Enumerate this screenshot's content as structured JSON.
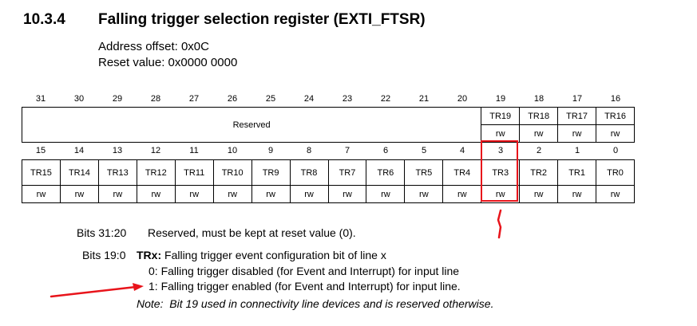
{
  "section": {
    "number": "10.3.4",
    "title": "Falling trigger selection register (EXTI_FTSR)",
    "address_offset": "Address offset: 0x0C",
    "reset_value": "Reset value: 0x0000 0000"
  },
  "register": {
    "upper_bit_numbers": [
      "31",
      "30",
      "29",
      "28",
      "27",
      "26",
      "25",
      "24",
      "23",
      "22",
      "21",
      "20",
      "19",
      "18",
      "17",
      "16"
    ],
    "reserved_label": "Reserved",
    "upper_fields": [
      "TR19",
      "TR18",
      "TR17",
      "TR16"
    ],
    "upper_access": [
      "rw",
      "rw",
      "rw",
      "rw"
    ],
    "lower_bit_numbers": [
      "15",
      "14",
      "13",
      "12",
      "11",
      "10",
      "9",
      "8",
      "7",
      "6",
      "5",
      "4",
      "3",
      "2",
      "1",
      "0"
    ],
    "lower_fields": [
      "TR15",
      "TR14",
      "TR13",
      "TR12",
      "TR11",
      "TR10",
      "TR9",
      "TR8",
      "TR7",
      "TR6",
      "TR5",
      "TR4",
      "TR3",
      "TR2",
      "TR1",
      "TR0"
    ],
    "lower_access": [
      "rw",
      "rw",
      "rw",
      "rw",
      "rw",
      "rw",
      "rw",
      "rw",
      "rw",
      "rw",
      "rw",
      "rw",
      "rw",
      "rw",
      "rw",
      "rw"
    ]
  },
  "bits_desc": [
    {
      "bits": "Bits 31:20",
      "text": "Reserved, must be kept at reset value (0)."
    },
    {
      "bits": "Bits 19:0",
      "field": "TRx:",
      "text": " Falling trigger event configuration bit of line x"
    }
  ],
  "values": [
    "0: Falling trigger disabled (for Event and Interrupt) for input line",
    "1: Falling trigger enabled (for Event and Interrupt) for input line."
  ],
  "note": "Note:  Bit 19 used in connectivity line devices and is reserved otherwise.",
  "colors": {
    "annotation": "#e8141b"
  }
}
